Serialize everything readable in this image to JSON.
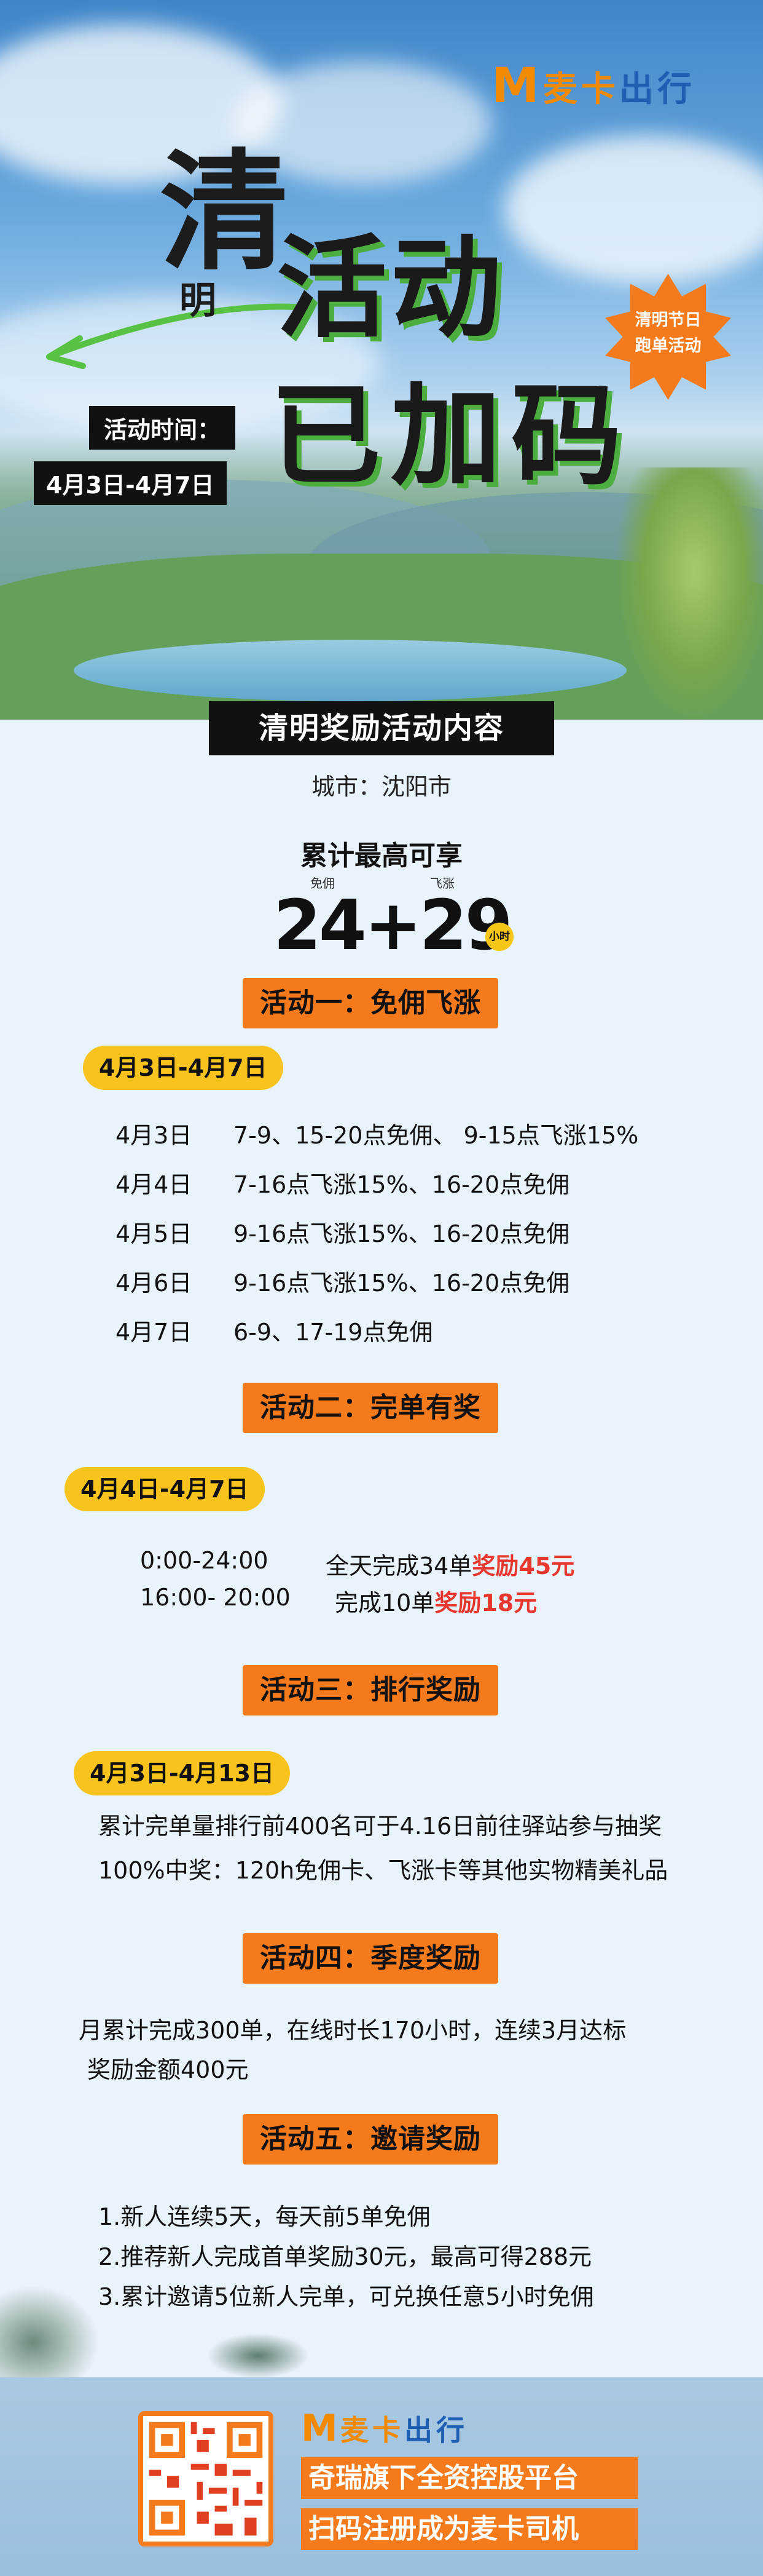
{
  "brand": {
    "logo_mark": "M",
    "name_part1": "麦卡",
    "name_part2": "出行"
  },
  "hero": {
    "qing": "清",
    "ming": "明",
    "title_line1": "活动",
    "title_line2": "已加码",
    "burst": {
      "line1": "清明节日",
      "line2": "跑单活动"
    },
    "time_label": "活动时间：",
    "time_range": "4月3日-4月7日"
  },
  "section": {
    "title": "清明奖励活动内容",
    "city": "城市：沈阳市",
    "cumulative": "累计最高可享",
    "label_free": "免佣",
    "label_boost": "飞涨",
    "big_number": "24+29",
    "hours_badge": "小时"
  },
  "activity1": {
    "tab": "活动一：免佣飞涨",
    "date": "4月3日-4月7日",
    "rows": [
      {
        "date": "4月3日",
        "desc": "7-9、15-20点免佣、 9-15点飞涨15%"
      },
      {
        "date": "4月4日",
        "desc": "7-16点飞涨15%、16-20点免佣"
      },
      {
        "date": "4月5日",
        "desc": "9-16点飞涨15%、16-20点免佣"
      },
      {
        "date": "4月6日",
        "desc": "9-16点飞涨15%、16-20点免佣"
      },
      {
        "date": "4月7日",
        "desc": "6-9、17-19点免佣"
      }
    ]
  },
  "activity2": {
    "tab": "活动二：完单有奖",
    "date": "4月4日-4月7日",
    "rows": [
      {
        "time": "0:00-24:00",
        "desc": "全天完成34单",
        "reward": "奖励45元"
      },
      {
        "time": "16:00- 20:00",
        "desc": "完成10单",
        "reward": "奖励18元"
      }
    ]
  },
  "activity3": {
    "tab": "活动三：排行奖励",
    "date": "4月3日-4月13日",
    "line1": "累计完单量排行前400名可于4.16日前往驿站参与抽奖",
    "line2": "100%中奖：120h免佣卡、飞涨卡等其他实物精美礼品"
  },
  "activity4": {
    "tab": "活动四：季度奖励",
    "line1": "月累计完成300单，在线时长170小时，连续3月达标",
    "line2": "奖励金额400元"
  },
  "activity5": {
    "tab": "活动五：邀请奖励",
    "items": [
      "1.新人连续5天，每天前5单免佣",
      "2.推荐新人完成首单奖励30元，最高可得288元",
      "3.累计邀请5位新人完单，可兑换任意5小时免佣"
    ]
  },
  "footer": {
    "slogan1": "奇瑞旗下全资控股平台",
    "slogan2": "扫码注册成为麦卡司机"
  },
  "colors": {
    "accent_orange": "#f47a1c",
    "pill_yellow": "#f8c31c",
    "reward_red": "#e8382d",
    "title_green": "#4cae3f"
  }
}
